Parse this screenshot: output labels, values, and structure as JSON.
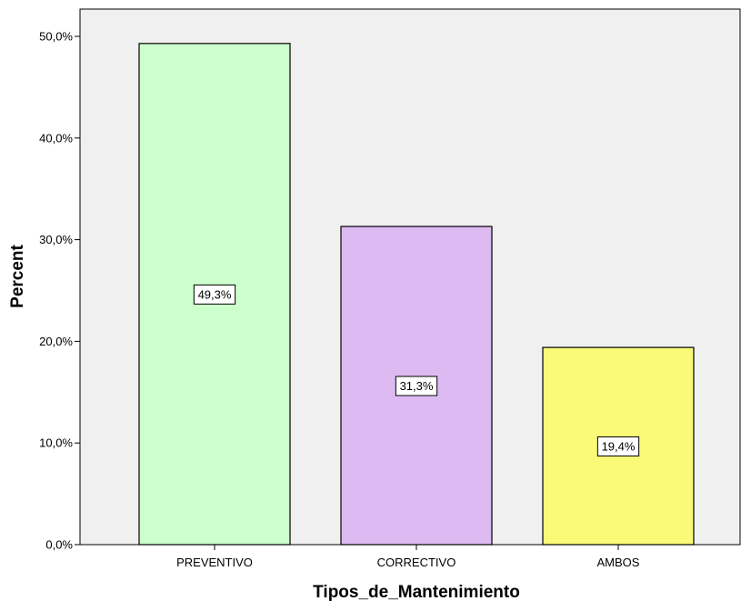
{
  "chart_data": {
    "type": "bar",
    "title": "",
    "xlabel": "Tipos_de_Mantenimiento",
    "ylabel": "Percent",
    "categories": [
      "PREVENTIVO",
      "CORRECTIVO",
      "AMBOS"
    ],
    "values": [
      49.3,
      31.3,
      19.4
    ],
    "data_labels": [
      "49,3%",
      "31,3%",
      "19,4%"
    ],
    "bar_colors": [
      "#ccffcc",
      "#ddbbf2",
      "#fafa78"
    ],
    "plot_background": "#f0f0f0",
    "ylim": [
      0,
      50
    ],
    "yticks": [
      0,
      10,
      20,
      30,
      40,
      50
    ],
    "ytick_labels": [
      "0,0%",
      "10,0%",
      "20,0%",
      "30,0%",
      "40,0%",
      "50,0%"
    ],
    "grid": false,
    "legend": "none"
  }
}
